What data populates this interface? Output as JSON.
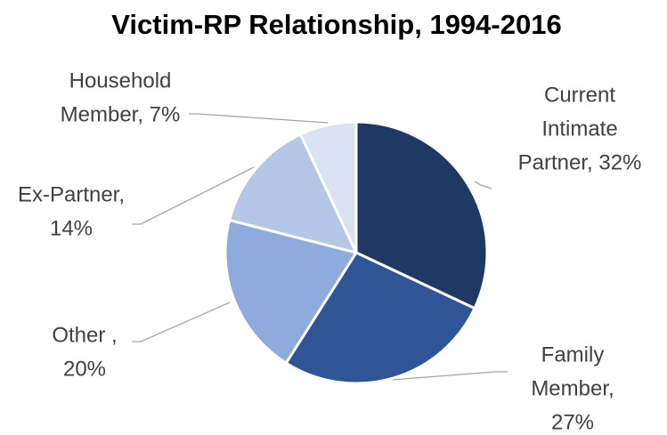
{
  "chart_data": {
    "type": "pie",
    "title": "Victim-RP Relationship, 1994-2016",
    "values": [
      32,
      27,
      20,
      14,
      7
    ],
    "value_labels": [
      [
        "Current",
        "Intimate",
        "Partner, 32%"
      ],
      [
        "Family",
        "Member,",
        "27%"
      ],
      [
        "Other ,",
        "20%"
      ],
      [
        "Ex-Partner,",
        "14%"
      ],
      [
        "Household",
        "Member, 7%"
      ]
    ],
    "colors": [
      "#203864",
      "#2f5597",
      "#8faadc",
      "#b4c7e7",
      "#dae3f3"
    ]
  }
}
